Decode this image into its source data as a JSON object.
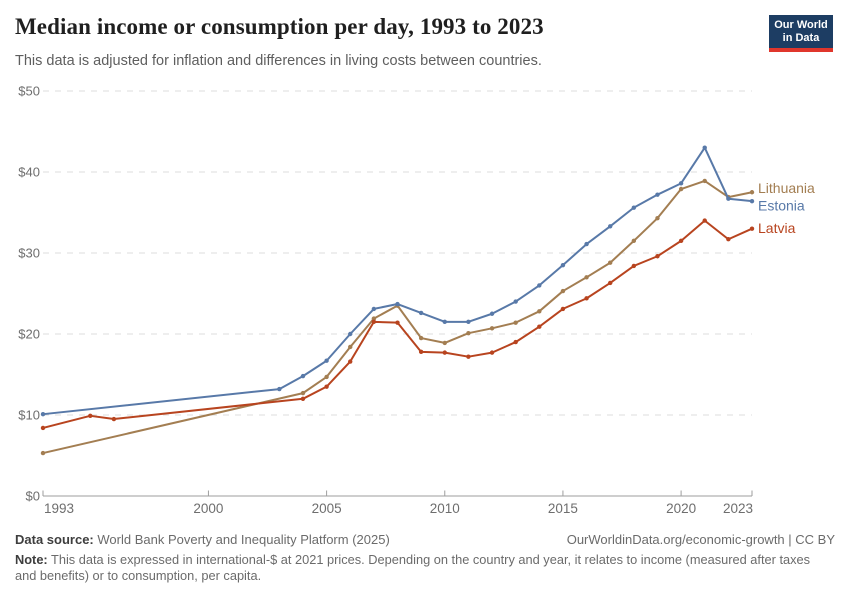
{
  "header": {
    "title": "Median income or consumption per day, 1993 to 2023",
    "subtitle": "This data is adjusted for inflation and differences in living costs between countries.",
    "logo": {
      "line1": "Our World",
      "line2": "in Data",
      "bg_color": "#1d3d63",
      "bar_color": "#e0362c"
    }
  },
  "chart_data": {
    "type": "line",
    "title": "Median income or consumption per day, 1993 to 2023",
    "xlabel": "",
    "ylabel": "",
    "xlim": [
      1993,
      2023
    ],
    "ylim": [
      0,
      50
    ],
    "x_ticks": [
      1993,
      2000,
      2005,
      2010,
      2015,
      2020,
      2023
    ],
    "y_ticks": [
      0,
      10,
      20,
      30,
      40,
      50
    ],
    "y_tick_prefix": "$",
    "grid": "horizontal-dashed",
    "legend_position": "end-of-line-labels",
    "series": [
      {
        "name": "Lithuania",
        "color": "#A37E52",
        "label_dy": -4,
        "points": [
          [
            1993,
            5.3
          ],
          [
            2004,
            12.7
          ],
          [
            2005,
            14.7
          ],
          [
            2006,
            18.4
          ],
          [
            2007,
            21.9
          ],
          [
            2008,
            23.5
          ],
          [
            2009,
            19.5
          ],
          [
            2010,
            18.9
          ],
          [
            2011,
            20.1
          ],
          [
            2012,
            20.7
          ],
          [
            2013,
            21.4
          ],
          [
            2014,
            22.8
          ],
          [
            2015,
            25.3
          ],
          [
            2016,
            27.0
          ],
          [
            2017,
            28.8
          ],
          [
            2018,
            31.5
          ],
          [
            2019,
            34.3
          ],
          [
            2020,
            37.9
          ],
          [
            2021,
            38.9
          ],
          [
            2022,
            36.9
          ],
          [
            2023,
            37.5
          ]
        ]
      },
      {
        "name": "Latvia",
        "color": "#B8441F",
        "label_dy": 0,
        "points": [
          [
            1993,
            8.4
          ],
          [
            1995,
            9.9
          ],
          [
            1996,
            9.5
          ],
          [
            2004,
            12.0
          ],
          [
            2005,
            13.5
          ],
          [
            2006,
            16.6
          ],
          [
            2007,
            21.5
          ],
          [
            2008,
            21.4
          ],
          [
            2009,
            17.8
          ],
          [
            2010,
            17.7
          ],
          [
            2011,
            17.2
          ],
          [
            2012,
            17.7
          ],
          [
            2013,
            19.0
          ],
          [
            2014,
            20.9
          ],
          [
            2015,
            23.1
          ],
          [
            2016,
            24.4
          ],
          [
            2017,
            26.3
          ],
          [
            2018,
            28.4
          ],
          [
            2019,
            29.6
          ],
          [
            2020,
            31.5
          ],
          [
            2021,
            34.0
          ],
          [
            2022,
            31.7
          ],
          [
            2023,
            33.0
          ]
        ]
      },
      {
        "name": "Estonia",
        "color": "#5879A8",
        "label_dy": 5,
        "points": [
          [
            1993,
            10.1
          ],
          [
            2003,
            13.2
          ],
          [
            2004,
            14.8
          ],
          [
            2005,
            16.7
          ],
          [
            2006,
            20.0
          ],
          [
            2007,
            23.1
          ],
          [
            2008,
            23.7
          ],
          [
            2009,
            22.6
          ],
          [
            2010,
            21.5
          ],
          [
            2011,
            21.5
          ],
          [
            2012,
            22.5
          ],
          [
            2013,
            24.0
          ],
          [
            2014,
            26.0
          ],
          [
            2015,
            28.5
          ],
          [
            2016,
            31.1
          ],
          [
            2017,
            33.3
          ],
          [
            2018,
            35.6
          ],
          [
            2019,
            37.2
          ],
          [
            2020,
            38.6
          ],
          [
            2021,
            43.0
          ],
          [
            2022,
            36.7
          ],
          [
            2023,
            36.4
          ]
        ]
      }
    ]
  },
  "footer": {
    "source_label": "Data source:",
    "source_text": "World Bank Poverty and Inequality Platform (2025)",
    "attribution": "OurWorldinData.org/economic-growth | CC BY",
    "note_label": "Note:",
    "note_text": "This data is expressed in international-$ at 2021 prices. Depending on the country and year, it relates to income (measured after taxes and benefits) or to consumption, per capita."
  }
}
